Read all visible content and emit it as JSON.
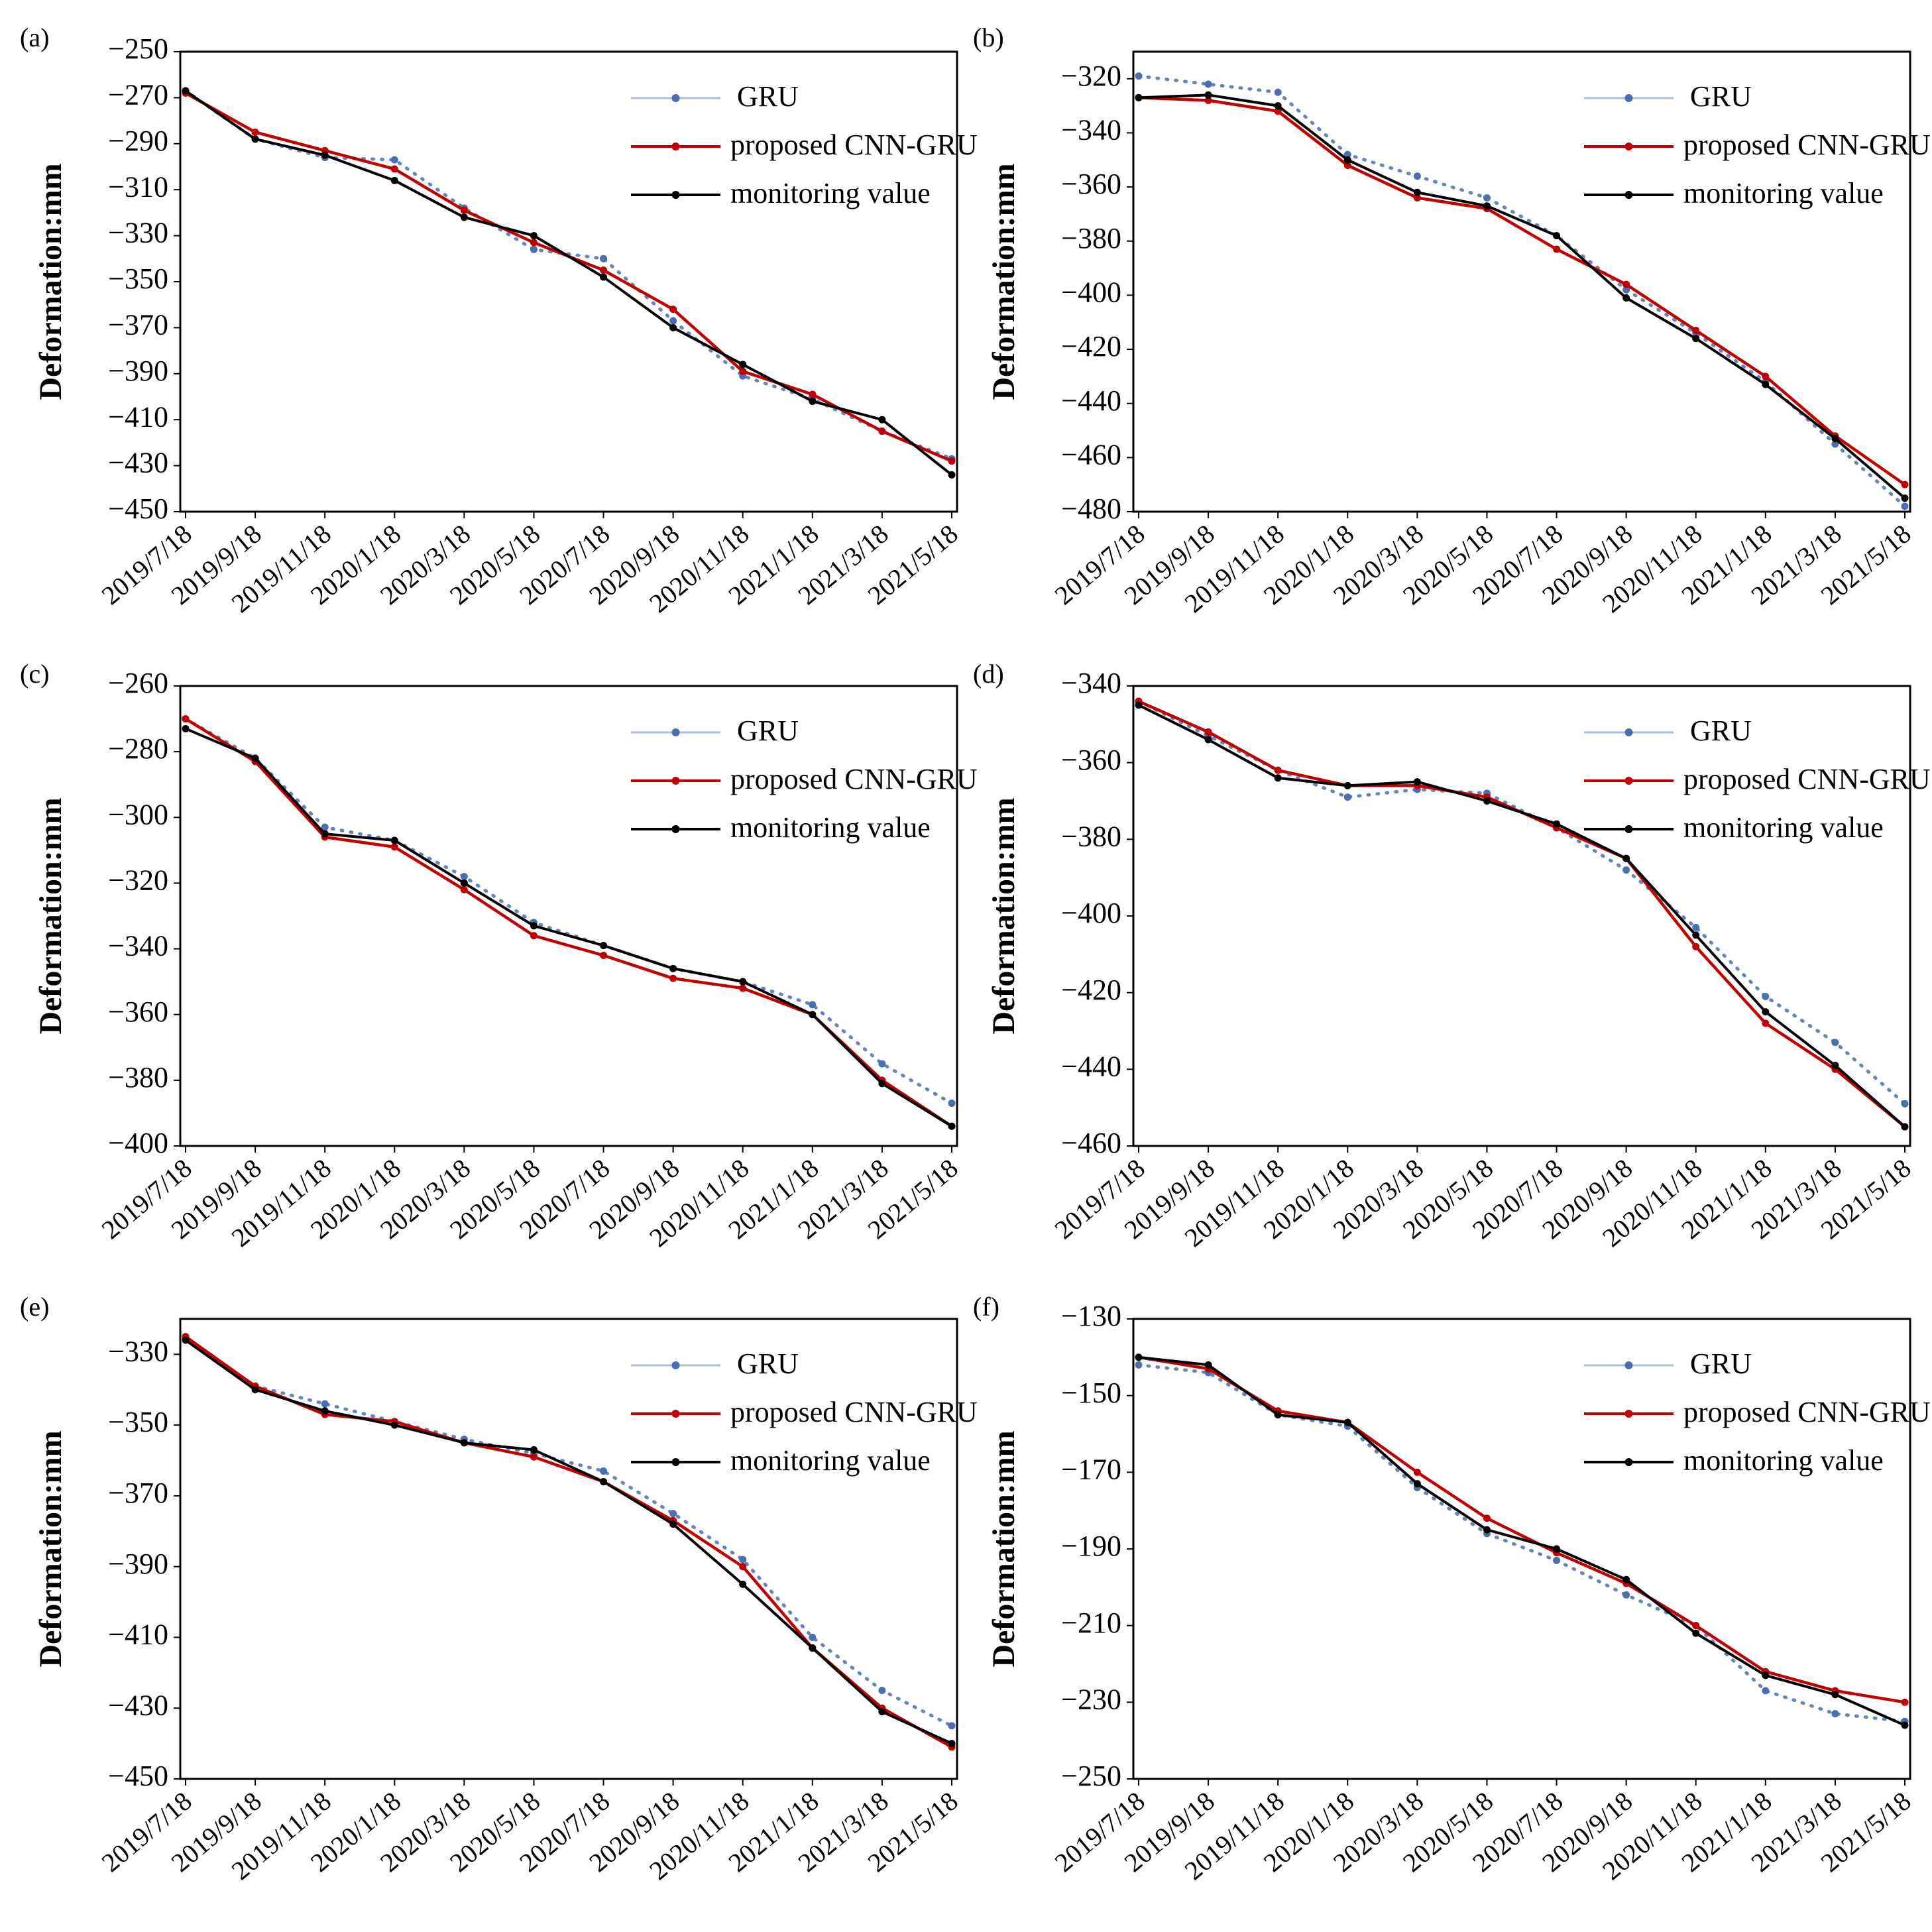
{
  "chart_data": [
    {
      "panel": "(a)",
      "type": "line",
      "ylabel": "Deformation:mm",
      "ylim": [
        -450,
        -250
      ],
      "yticks": [
        -250,
        -270,
        -290,
        -310,
        -330,
        -350,
        -370,
        -390,
        -410,
        -430,
        -450
      ],
      "categories": [
        "2019/7/18",
        "2019/9/18",
        "2019/11/18",
        "2020/1/18",
        "2020/3/18",
        "2020/5/18",
        "2020/7/18",
        "2020/9/18",
        "2020/11/18",
        "2021/1/18",
        "2021/3/18",
        "2021/5/18"
      ],
      "legend": "top-right",
      "series": [
        {
          "name": "GRU",
          "color": "#4a6fb0",
          "style": "dotted",
          "values": [
            -267,
            -288,
            -296,
            -297,
            -318,
            -336,
            -340,
            -367,
            -391,
            -401,
            -415,
            -427
          ]
        },
        {
          "name": "proposed CNN-GRU",
          "color": "#c00000",
          "style": "solid",
          "values": [
            -268,
            -285,
            -293,
            -301,
            -319,
            -333,
            -345,
            -362,
            -389,
            -399,
            -415,
            -428
          ]
        },
        {
          "name": "monitoring value",
          "color": "#000000",
          "style": "solid",
          "values": [
            -267,
            -288,
            -295,
            -306,
            -322,
            -330,
            -348,
            -370,
            -386,
            -402,
            -410,
            -434
          ]
        }
      ]
    },
    {
      "panel": "(b)",
      "type": "line",
      "ylabel": "Deformation:mm",
      "ylim": [
        -480,
        -310
      ],
      "yticks": [
        -320,
        -340,
        -360,
        -380,
        -400,
        -420,
        -440,
        -460,
        -480
      ],
      "categories": [
        "2019/7/18",
        "2019/9/18",
        "2019/11/18",
        "2020/1/18",
        "2020/3/18",
        "2020/5/18",
        "2020/7/18",
        "2020/9/18",
        "2020/11/18",
        "2021/1/18",
        "2021/3/18",
        "2021/5/18"
      ],
      "legend": "top-right",
      "series": [
        {
          "name": "GRU",
          "color": "#4a6fb0",
          "style": "dotted",
          "values": [
            -319,
            -322,
            -325,
            -348,
            -356,
            -364,
            -378,
            -398,
            -414,
            -432,
            -455,
            -478
          ]
        },
        {
          "name": "proposed CNN-GRU",
          "color": "#c00000",
          "style": "solid",
          "values": [
            -327,
            -328,
            -332,
            -352,
            -364,
            -368,
            -383,
            -396,
            -413,
            -430,
            -452,
            -470
          ]
        },
        {
          "name": "monitoring value",
          "color": "#000000",
          "style": "solid",
          "values": [
            -327,
            -326,
            -330,
            -350,
            -362,
            -367,
            -378,
            -401,
            -416,
            -433,
            -453,
            -475
          ]
        }
      ]
    },
    {
      "panel": "(c)",
      "type": "line",
      "ylabel": "Deformation:mm",
      "ylim": [
        -400,
        -260
      ],
      "yticks": [
        -260,
        -280,
        -300,
        -320,
        -340,
        -360,
        -380,
        -400
      ],
      "categories": [
        "2019/7/18",
        "2019/9/18",
        "2019/11/18",
        "2020/1/18",
        "2020/3/18",
        "2020/5/18",
        "2020/7/18",
        "2020/9/18",
        "2020/11/18",
        "2021/1/18",
        "2021/3/18",
        "2021/5/18"
      ],
      "legend": "top-right",
      "series": [
        {
          "name": "GRU",
          "color": "#4a6fb0",
          "style": "dotted",
          "values": [
            -270,
            -282,
            -303,
            -307,
            -318,
            -332,
            -339,
            -346,
            -350,
            -357,
            -375,
            -387
          ]
        },
        {
          "name": "proposed CNN-GRU",
          "color": "#c00000",
          "style": "solid",
          "values": [
            -270,
            -283,
            -306,
            -309,
            -322,
            -336,
            -342,
            -349,
            -352,
            -360,
            -380,
            -394
          ]
        },
        {
          "name": "monitoring value",
          "color": "#000000",
          "style": "solid",
          "values": [
            -273,
            -282,
            -305,
            -307,
            -320,
            -333,
            -339,
            -346,
            -350,
            -360,
            -381,
            -394
          ]
        }
      ]
    },
    {
      "panel": "(d)",
      "type": "line",
      "ylabel": "Deformation:mm",
      "ylim": [
        -460,
        -340
      ],
      "yticks": [
        -340,
        -360,
        -380,
        -400,
        -420,
        -440,
        -460
      ],
      "categories": [
        "2019/7/18",
        "2019/9/18",
        "2019/11/18",
        "2020/1/18",
        "2020/3/18",
        "2020/5/18",
        "2020/7/18",
        "2020/9/18",
        "2020/11/18",
        "2021/1/18",
        "2021/3/18",
        "2021/5/18"
      ],
      "legend": "top-right",
      "series": [
        {
          "name": "GRU",
          "color": "#4a6fb0",
          "style": "dotted",
          "values": [
            -344,
            -353,
            -362,
            -369,
            -367,
            -368,
            -377,
            -388,
            -403,
            -421,
            -433,
            -449
          ]
        },
        {
          "name": "proposed CNN-GRU",
          "color": "#c00000",
          "style": "solid",
          "values": [
            -344,
            -352,
            -362,
            -366,
            -366,
            -369,
            -377,
            -385,
            -408,
            -428,
            -440,
            -455
          ]
        },
        {
          "name": "monitoring value",
          "color": "#000000",
          "style": "solid",
          "values": [
            -345,
            -354,
            -364,
            -366,
            -365,
            -370,
            -376,
            -385,
            -405,
            -425,
            -439,
            -455
          ]
        }
      ]
    },
    {
      "panel": "(e)",
      "type": "line",
      "ylabel": "Deformation:mm",
      "ylim": [
        -450,
        -320
      ],
      "yticks": [
        -330,
        -350,
        -370,
        -390,
        -410,
        -430,
        -450
      ],
      "categories": [
        "2019/7/18",
        "2019/9/18",
        "2019/11/18",
        "2020/1/18",
        "2020/3/18",
        "2020/5/18",
        "2020/7/18",
        "2020/9/18",
        "2020/11/18",
        "2021/1/18",
        "2021/3/18",
        "2021/5/18"
      ],
      "legend": "top-right",
      "series": [
        {
          "name": "GRU",
          "color": "#4a6fb0",
          "style": "dotted",
          "values": [
            -326,
            -339,
            -344,
            -349,
            -354,
            -358,
            -363,
            -375,
            -388,
            -410,
            -425,
            -435
          ]
        },
        {
          "name": "proposed CNN-GRU",
          "color": "#c00000",
          "style": "solid",
          "values": [
            -325,
            -339,
            -347,
            -349,
            -355,
            -359,
            -366,
            -377,
            -390,
            -413,
            -430,
            -441
          ]
        },
        {
          "name": "monitoring value",
          "color": "#000000",
          "style": "solid",
          "values": [
            -326,
            -340,
            -346,
            -350,
            -355,
            -357,
            -366,
            -378,
            -395,
            -413,
            -431,
            -440
          ]
        }
      ]
    },
    {
      "panel": "(f)",
      "type": "line",
      "ylabel": "Deformation:mm",
      "ylim": [
        -250,
        -130
      ],
      "yticks": [
        -130,
        -150,
        -170,
        -190,
        -210,
        -230,
        -250
      ],
      "categories": [
        "2019/7/18",
        "2019/9/18",
        "2019/11/18",
        "2020/1/18",
        "2020/3/18",
        "2020/5/18",
        "2020/7/18",
        "2020/9/18",
        "2020/11/18",
        "2021/1/18",
        "2021/3/18",
        "2021/5/18"
      ],
      "legend": "top-right",
      "series": [
        {
          "name": "GRU",
          "color": "#4a6fb0",
          "style": "dotted",
          "values": [
            -142,
            -144,
            -155,
            -158,
            -174,
            -186,
            -193,
            -202,
            -210,
            -227,
            -233,
            -235
          ]
        },
        {
          "name": "proposed CNN-GRU",
          "color": "#c00000",
          "style": "solid",
          "values": [
            -140,
            -143,
            -154,
            -157,
            -170,
            -182,
            -191,
            -199,
            -210,
            -222,
            -227,
            -230
          ]
        },
        {
          "name": "monitoring value",
          "color": "#000000",
          "style": "solid",
          "values": [
            -140,
            -142,
            -155,
            -157,
            -173,
            -185,
            -190,
            -198,
            -212,
            -223,
            -228,
            -236
          ]
        }
      ]
    }
  ]
}
